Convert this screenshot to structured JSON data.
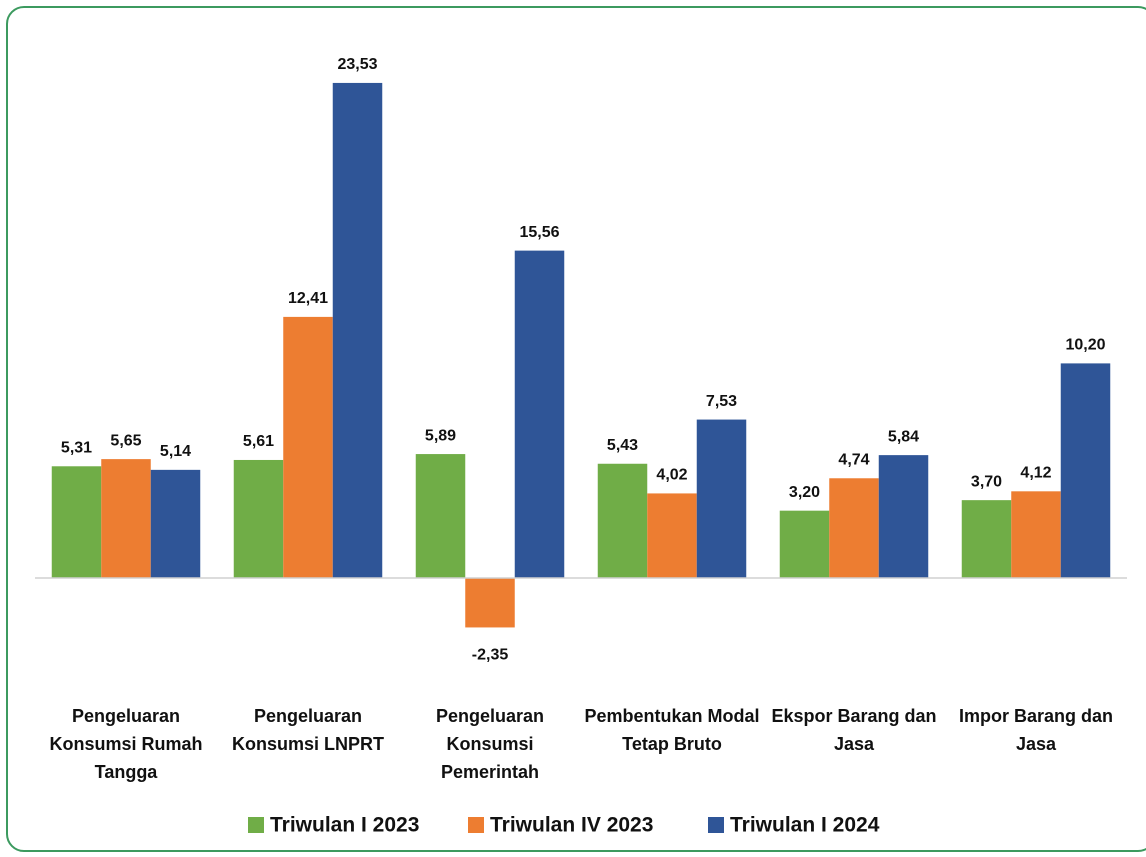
{
  "chart_data": {
    "type": "bar",
    "categories": [
      "Pengeluaran Konsumsi Rumah Tangga",
      "Pengeluaran Konsumsi LNPRT",
      "Pengeluaran Konsumsi Pemerintah",
      "Pembentukan Modal Tetap Bruto",
      "Ekspor Barang dan Jasa",
      "Impor Barang dan Jasa"
    ],
    "series": [
      {
        "name": "Triwulan I 2023",
        "color": "#70ad47",
        "values": [
          5.31,
          5.61,
          5.89,
          5.43,
          3.2,
          3.7
        ],
        "value_labels": [
          "5,31",
          "5,61",
          "5,89",
          "5,43",
          "3,20",
          "3,70"
        ]
      },
      {
        "name": "Triwulan IV 2023",
        "color": "#ed7d31",
        "values": [
          5.65,
          12.41,
          -2.35,
          4.02,
          4.74,
          4.12
        ],
        "value_labels": [
          "5,65",
          "12,41",
          "-2,35",
          "4,02",
          "4,74",
          "4,12"
        ]
      },
      {
        "name": "Triwulan I 2024",
        "color": "#2f5597",
        "values": [
          5.14,
          23.53,
          15.56,
          7.53,
          5.84,
          10.2
        ],
        "value_labels": [
          "5,14",
          "23,53",
          "15,56",
          "7,53",
          "5,84",
          "10,20"
        ]
      }
    ],
    "ylim": [
      -4,
      26
    ],
    "legend": "bottom"
  }
}
